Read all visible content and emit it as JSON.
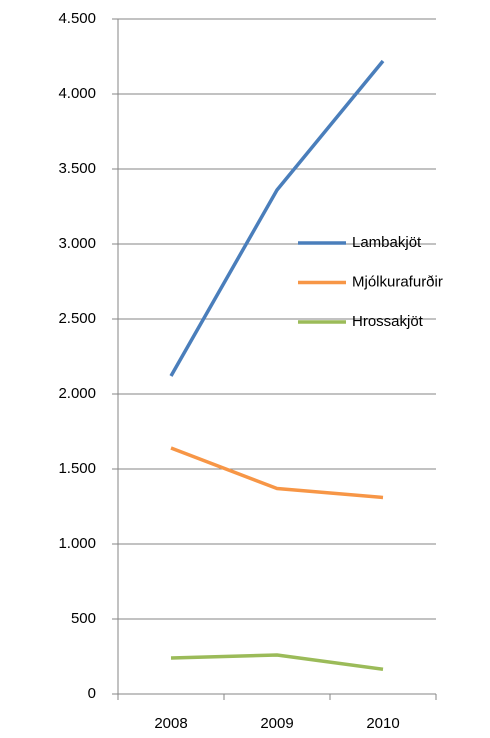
{
  "chart_data": {
    "type": "line",
    "categories": [
      "2008",
      "2009",
      "2010"
    ],
    "series": [
      {
        "name": "Lambakjöt",
        "color": "#4a7ebb",
        "values": [
          2120,
          3360,
          4220
        ]
      },
      {
        "name": "Mjólkurafurðir",
        "color": "#f79646",
        "values": [
          1640,
          1370,
          1310
        ]
      },
      {
        "name": "Hrossakjöt",
        "color": "#9bbb59",
        "values": [
          240,
          260,
          165
        ]
      }
    ],
    "ylim": [
      0,
      4500
    ],
    "yticks": [
      0,
      500,
      {
        "value": 1000,
        "label": "1.000"
      },
      {
        "value": 1500,
        "label": "1.500"
      },
      {
        "value": 2000,
        "label": "2.000"
      },
      {
        "value": 2500,
        "label": "2.500"
      },
      {
        "value": 3000,
        "label": "3.000"
      },
      {
        "value": 3500,
        "label": "3.500"
      },
      {
        "value": 4000,
        "label": "4.000"
      },
      {
        "value": 4500,
        "label": "4.500"
      }
    ],
    "grid": true,
    "legend": "right"
  }
}
